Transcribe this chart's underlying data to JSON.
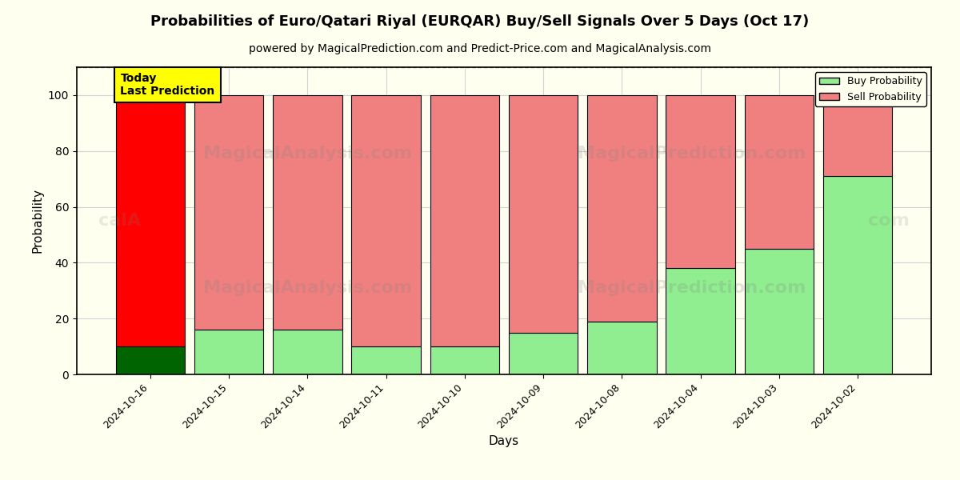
{
  "title": "Probabilities of Euro/Qatari Riyal (EURQAR) Buy/Sell Signals Over 5 Days (Oct 17)",
  "subtitle": "powered by MagicalPrediction.com and Predict-Price.com and MagicalAnalysis.com",
  "xlabel": "Days",
  "ylabel": "Probability",
  "categories": [
    "2024-10-16",
    "2024-10-15",
    "2024-10-14",
    "2024-10-11",
    "2024-10-10",
    "2024-10-09",
    "2024-10-08",
    "2024-10-04",
    "2024-10-03",
    "2024-10-02"
  ],
  "buy_values": [
    10,
    16,
    16,
    10,
    10,
    15,
    19,
    38,
    45,
    71
  ],
  "sell_values": [
    90,
    84,
    84,
    90,
    90,
    85,
    81,
    62,
    55,
    29
  ],
  "buy_color_today": "#006400",
  "sell_color_today": "#ff0000",
  "buy_color_normal": "#90ee90",
  "sell_color_normal": "#f08080",
  "bar_edgecolor": "#000000",
  "ylim": [
    0,
    110
  ],
  "yticks": [
    0,
    20,
    40,
    60,
    80,
    100
  ],
  "dashed_line_y": 110,
  "watermark_row1": [
    "MagicalAnalysis.com",
    "MagicalPrediction.com"
  ],
  "watermark_row2": [
    "MagicalAnalysis.com",
    "MagicalPrediction.com"
  ],
  "today_label_text": "Today\nLast Prediction",
  "today_label_bg": "#ffff00",
  "legend_buy_label": "Buy Probability",
  "legend_sell_label": "Sell Probability",
  "title_fontsize": 13,
  "subtitle_fontsize": 10,
  "axis_label_fontsize": 11,
  "tick_fontsize": 9,
  "bg_color": "#fffff0"
}
